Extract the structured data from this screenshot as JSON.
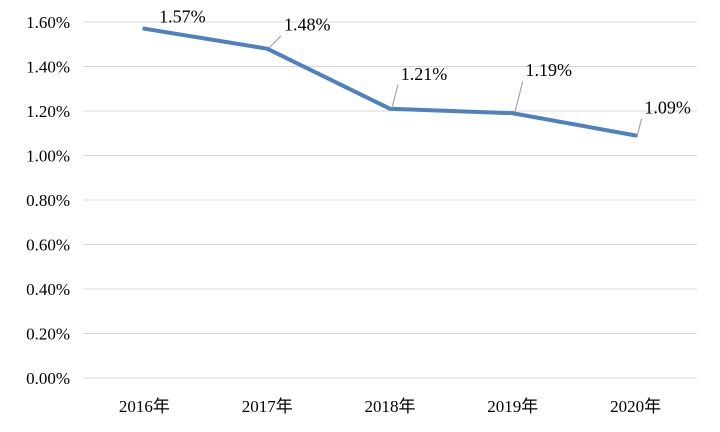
{
  "chart_data": {
    "type": "line",
    "title": "",
    "xlabel": "",
    "ylabel": "",
    "categories": [
      "2016年",
      "2017年",
      "2018年",
      "2019年",
      "2020年"
    ],
    "series": [
      {
        "values": [
          1.57,
          1.48,
          1.21,
          1.19,
          1.09
        ],
        "data_labels": [
          "1.57%",
          "1.48%",
          "1.21%",
          "1.19%",
          "1.09%"
        ]
      }
    ],
    "y_ticks": [
      0,
      0.2,
      0.4,
      0.6,
      0.8,
      1.0,
      1.2,
      1.4,
      1.6
    ],
    "y_tick_labels": [
      "0.00%",
      "0.20%",
      "0.40%",
      "0.60%",
      "0.80%",
      "1.00%",
      "1.20%",
      "1.40%",
      "1.60%"
    ],
    "ylim": [
      0,
      1.6
    ],
    "grid": true,
    "legend": "none",
    "colors": {
      "series": "#4f81bd",
      "grid": "#d9d9d9",
      "leader": "#a6a6a6"
    }
  }
}
